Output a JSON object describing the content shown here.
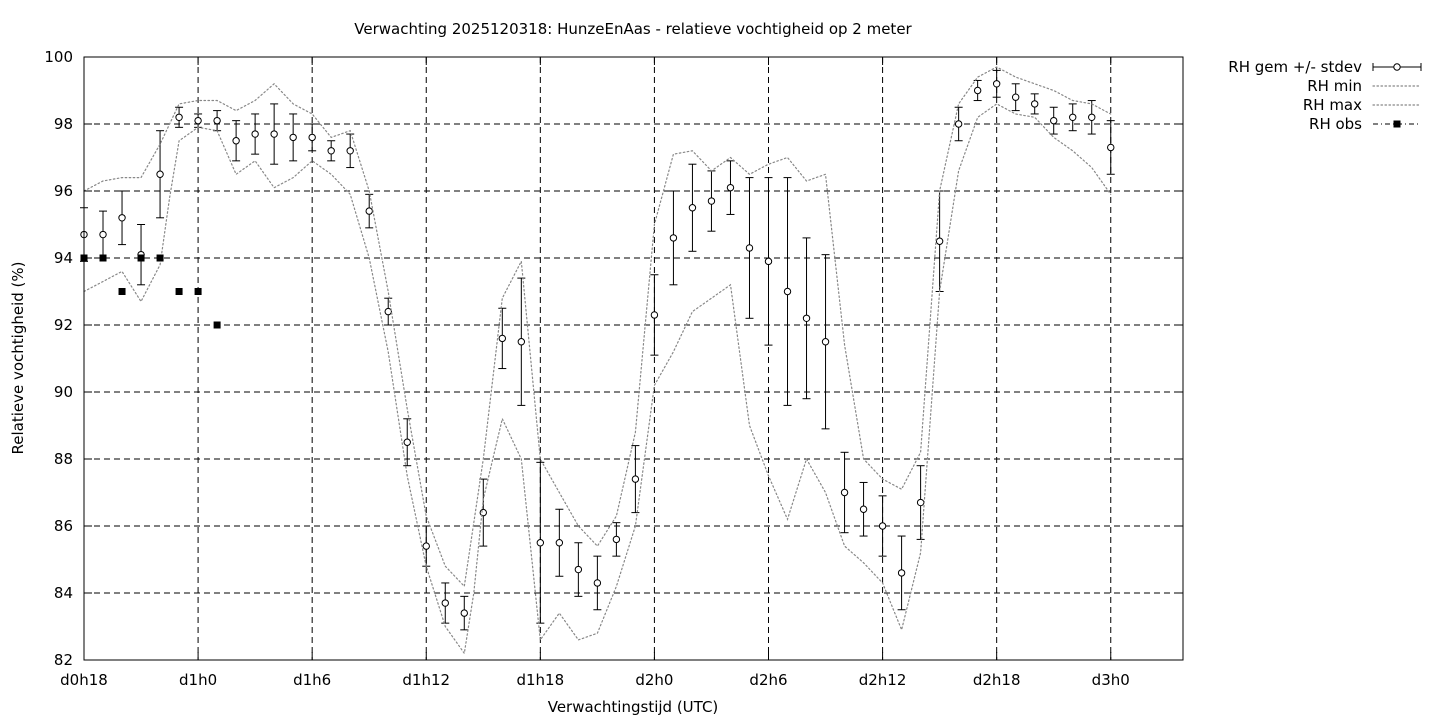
{
  "chart_data": {
    "type": "scatter",
    "title": "Verwachting 2025120318: HunzeEnAas - relatieve vochtigheid op 2 meter",
    "xlabel": "Verwachtingstijd (UTC)",
    "ylabel": "Relatieve vochtigheid (%)",
    "xlim": [
      18,
      75.8
    ],
    "ylim": [
      82,
      100
    ],
    "grid": true,
    "legend_position": "top-right outside",
    "x_ticks": [
      {
        "value": 18,
        "label": "d0h18"
      },
      {
        "value": 24,
        "label": "d1h0"
      },
      {
        "value": 30,
        "label": "d1h6"
      },
      {
        "value": 36,
        "label": "d1h12"
      },
      {
        "value": 42,
        "label": "d1h18"
      },
      {
        "value": 48,
        "label": "d2h0"
      },
      {
        "value": 54,
        "label": "d2h6"
      },
      {
        "value": 60,
        "label": "d2h12"
      },
      {
        "value": 66,
        "label": "d2h18"
      },
      {
        "value": 72,
        "label": "d3h0"
      }
    ],
    "y_ticks": [
      82,
      84,
      86,
      88,
      90,
      92,
      94,
      96,
      98,
      100
    ],
    "series": [
      {
        "name": "RH gem +/- stdev",
        "style": "errorbars",
        "points": [
          {
            "x": 18,
            "y": 94.7,
            "err": 0.8
          },
          {
            "x": 19,
            "y": 94.7,
            "err": 0.7
          },
          {
            "x": 20,
            "y": 95.2,
            "err": 0.8
          },
          {
            "x": 21,
            "y": 94.1,
            "err": 0.9
          },
          {
            "x": 22,
            "y": 96.5,
            "err": 1.3
          },
          {
            "x": 23,
            "y": 98.2,
            "err": 0.3
          },
          {
            "x": 24,
            "y": 98.1,
            "err": 0.2
          },
          {
            "x": 25,
            "y": 98.1,
            "err": 0.3
          },
          {
            "x": 26,
            "y": 97.5,
            "err": 0.6
          },
          {
            "x": 27,
            "y": 97.7,
            "err": 0.6
          },
          {
            "x": 28,
            "y": 97.7,
            "err": 0.9
          },
          {
            "x": 29,
            "y": 97.6,
            "err": 0.7
          },
          {
            "x": 30,
            "y": 97.6,
            "err": 0.4
          },
          {
            "x": 31,
            "y": 97.2,
            "err": 0.3
          },
          {
            "x": 32,
            "y": 97.2,
            "err": 0.5
          },
          {
            "x": 33,
            "y": 95.4,
            "err": 0.5
          },
          {
            "x": 34,
            "y": 92.4,
            "err": 0.4
          },
          {
            "x": 35,
            "y": 88.5,
            "err": 0.7
          },
          {
            "x": 36,
            "y": 85.4,
            "err": 0.6
          },
          {
            "x": 37,
            "y": 83.7,
            "err": 0.6
          },
          {
            "x": 38,
            "y": 83.4,
            "err": 0.5
          },
          {
            "x": 39,
            "y": 86.4,
            "err": 1.0
          },
          {
            "x": 40,
            "y": 91.6,
            "err": 0.9
          },
          {
            "x": 41,
            "y": 91.5,
            "err": 1.9
          },
          {
            "x": 42,
            "y": 85.5,
            "err": 2.4
          },
          {
            "x": 43,
            "y": 85.5,
            "err": 1.0
          },
          {
            "x": 44,
            "y": 84.7,
            "err": 0.8
          },
          {
            "x": 45,
            "y": 84.3,
            "err": 0.8
          },
          {
            "x": 46,
            "y": 85.6,
            "err": 0.5
          },
          {
            "x": 47,
            "y": 87.4,
            "err": 1.0
          },
          {
            "x": 48,
            "y": 92.3,
            "err": 1.2
          },
          {
            "x": 49,
            "y": 94.6,
            "err": 1.4
          },
          {
            "x": 50,
            "y": 95.5,
            "err": 1.3
          },
          {
            "x": 51,
            "y": 95.7,
            "err": 0.9
          },
          {
            "x": 52,
            "y": 96.1,
            "err": 0.8
          },
          {
            "x": 53,
            "y": 94.3,
            "err": 2.1
          },
          {
            "x": 54,
            "y": 93.9,
            "err": 2.5
          },
          {
            "x": 55,
            "y": 93.0,
            "err": 3.4
          },
          {
            "x": 56,
            "y": 92.2,
            "err": 2.4
          },
          {
            "x": 57,
            "y": 91.5,
            "err": 2.6
          },
          {
            "x": 58,
            "y": 87.0,
            "err": 1.2
          },
          {
            "x": 59,
            "y": 86.5,
            "err": 0.8
          },
          {
            "x": 60,
            "y": 86.0,
            "err": 0.9
          },
          {
            "x": 61,
            "y": 84.6,
            "err": 1.1
          },
          {
            "x": 62,
            "y": 86.7,
            "err": 1.1
          },
          {
            "x": 63,
            "y": 94.5,
            "err": 1.5
          },
          {
            "x": 64,
            "y": 98.0,
            "err": 0.5
          },
          {
            "x": 65,
            "y": 99.0,
            "err": 0.3
          },
          {
            "x": 66,
            "y": 99.2,
            "err": 0.4
          },
          {
            "x": 67,
            "y": 98.8,
            "err": 0.4
          },
          {
            "x": 68,
            "y": 98.6,
            "err": 0.3
          },
          {
            "x": 69,
            "y": 98.1,
            "err": 0.4
          },
          {
            "x": 70,
            "y": 98.2,
            "err": 0.4
          },
          {
            "x": 71,
            "y": 98.2,
            "err": 0.5
          },
          {
            "x": 72,
            "y": 97.3,
            "err": 0.8
          }
        ]
      },
      {
        "name": "RH min",
        "style": "dotted",
        "points": [
          [
            18,
            93.0
          ],
          [
            19,
            93.3
          ],
          [
            20,
            93.6
          ],
          [
            21,
            92.7
          ],
          [
            22,
            93.8
          ],
          [
            22.5,
            95.8
          ],
          [
            23,
            97.5
          ],
          [
            24,
            97.9
          ],
          [
            25,
            97.8
          ],
          [
            26,
            96.5
          ],
          [
            27,
            96.9
          ],
          [
            28,
            96.1
          ],
          [
            29,
            96.4
          ],
          [
            30,
            96.9
          ],
          [
            31,
            96.5
          ],
          [
            32,
            95.9
          ],
          [
            33,
            94.0
          ],
          [
            34,
            91.2
          ],
          [
            35,
            87.5
          ],
          [
            36,
            84.8
          ],
          [
            37,
            83.0
          ],
          [
            38,
            82.2
          ],
          [
            38.5,
            84.0
          ],
          [
            39,
            86.8
          ],
          [
            40,
            89.2
          ],
          [
            41,
            88.0
          ],
          [
            42,
            82.6
          ],
          [
            43,
            83.4
          ],
          [
            44,
            82.6
          ],
          [
            45,
            82.8
          ],
          [
            46,
            84.2
          ],
          [
            47,
            86.0
          ],
          [
            48,
            90.2
          ],
          [
            49,
            91.2
          ],
          [
            50,
            92.4
          ],
          [
            51,
            92.8
          ],
          [
            52,
            93.2
          ],
          [
            53,
            89.0
          ],
          [
            54,
            87.5
          ],
          [
            55,
            86.2
          ],
          [
            56,
            88.0
          ],
          [
            57,
            87.0
          ],
          [
            58,
            85.4
          ],
          [
            59,
            84.9
          ],
          [
            60,
            84.3
          ],
          [
            61,
            82.9
          ],
          [
            62,
            85.2
          ],
          [
            63,
            93.0
          ],
          [
            64,
            96.6
          ],
          [
            65,
            98.2
          ],
          [
            66,
            98.6
          ],
          [
            67,
            98.3
          ],
          [
            68,
            98.2
          ],
          [
            69,
            97.6
          ],
          [
            70,
            97.2
          ],
          [
            71,
            96.7
          ],
          [
            72,
            95.9
          ]
        ]
      },
      {
        "name": "RH max",
        "style": "dotted",
        "points": [
          [
            18,
            96.0
          ],
          [
            19,
            96.3
          ],
          [
            20,
            96.4
          ],
          [
            21,
            96.4
          ],
          [
            22,
            97.4
          ],
          [
            23,
            98.6
          ],
          [
            24,
            98.7
          ],
          [
            25,
            98.7
          ],
          [
            26,
            98.4
          ],
          [
            27,
            98.7
          ],
          [
            28,
            99.2
          ],
          [
            29,
            98.6
          ],
          [
            30,
            98.3
          ],
          [
            31,
            97.6
          ],
          [
            32,
            97.8
          ],
          [
            33,
            96.0
          ],
          [
            34,
            93.0
          ],
          [
            35,
            89.5
          ],
          [
            36,
            86.3
          ],
          [
            37,
            84.8
          ],
          [
            38,
            84.2
          ],
          [
            39,
            88.0
          ],
          [
            40,
            92.8
          ],
          [
            41,
            93.9
          ],
          [
            42,
            88.0
          ],
          [
            43,
            87.0
          ],
          [
            44,
            86.0
          ],
          [
            45,
            85.4
          ],
          [
            46,
            86.3
          ],
          [
            47,
            88.8
          ],
          [
            48,
            95.0
          ],
          [
            49,
            97.1
          ],
          [
            50,
            97.2
          ],
          [
            51,
            96.6
          ],
          [
            52,
            97.0
          ],
          [
            53,
            96.5
          ],
          [
            54,
            96.8
          ],
          [
            55,
            97.0
          ],
          [
            56,
            96.3
          ],
          [
            57,
            96.5
          ],
          [
            58,
            91.4
          ],
          [
            59,
            88.0
          ],
          [
            60,
            87.4
          ],
          [
            61,
            87.1
          ],
          [
            62,
            88.2
          ],
          [
            63,
            96.0
          ],
          [
            64,
            98.6
          ],
          [
            65,
            99.4
          ],
          [
            66,
            99.7
          ],
          [
            67,
            99.4
          ],
          [
            68,
            99.2
          ],
          [
            69,
            99.0
          ],
          [
            70,
            98.7
          ],
          [
            71,
            98.6
          ],
          [
            72,
            98.3
          ]
        ]
      },
      {
        "name": "RH obs",
        "style": "squares",
        "points": [
          [
            18,
            94
          ],
          [
            19,
            94
          ],
          [
            20,
            93
          ],
          [
            21,
            94
          ],
          [
            22,
            94
          ],
          [
            23,
            93
          ],
          [
            24,
            93
          ],
          [
            25,
            92
          ]
        ]
      }
    ]
  }
}
